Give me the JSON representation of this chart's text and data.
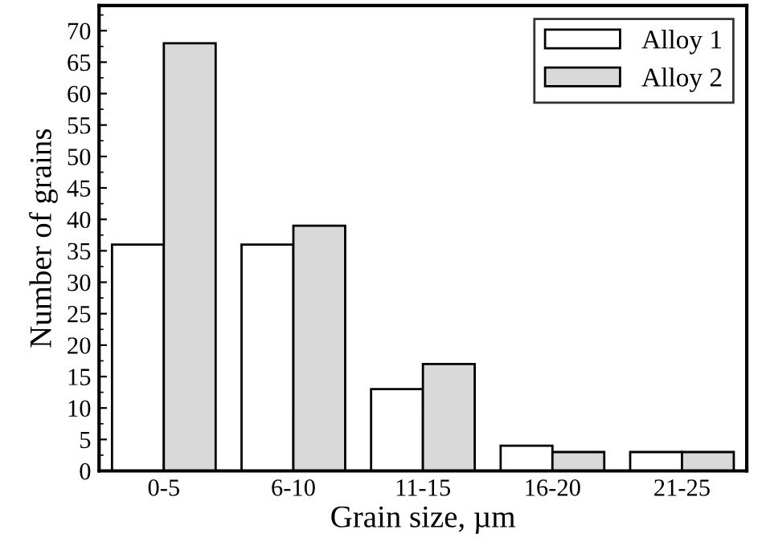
{
  "chart_data": {
    "type": "bar",
    "xlabel": "Grain size, µm",
    "ylabel": "Number of grains",
    "categories": [
      "0-5",
      "6-10",
      "11-15",
      "16-20",
      "21-25"
    ],
    "series": [
      {
        "name": "Alloy 1",
        "color": "#ffffff",
        "values": [
          36,
          36,
          13,
          4,
          3
        ]
      },
      {
        "name": "Alloy 2",
        "color": "#d9d9d9",
        "values": [
          68,
          39,
          17,
          3,
          3
        ]
      }
    ],
    "ylim": [
      0,
      74
    ],
    "yticks": [
      0,
      5,
      10,
      15,
      20,
      25,
      30,
      35,
      40,
      45,
      50,
      55,
      60,
      65,
      70
    ],
    "grid": false,
    "legend": "top right"
  }
}
